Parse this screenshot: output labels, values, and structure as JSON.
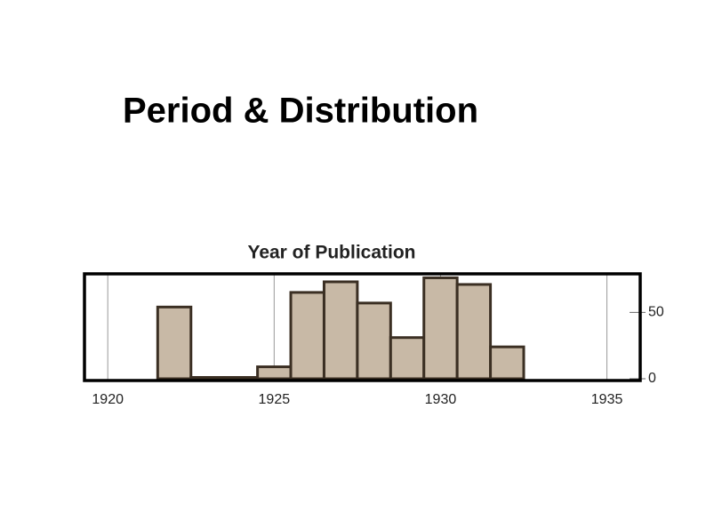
{
  "slide": {
    "title": "Period & Distribution"
  },
  "chart_data": {
    "type": "histogram",
    "title": "Year of Publication",
    "bins": [
      1921.5,
      1922.5,
      1923.5,
      1924.5,
      1925.5,
      1926.5,
      1927.5,
      1928.5,
      1929.5,
      1930.5,
      1931.5,
      1932.5
    ],
    "values": [
      54,
      1,
      1,
      9,
      65,
      73,
      57,
      31,
      76,
      71,
      24
    ],
    "color": "#c8b9a6",
    "xlim": [
      1919.3,
      1936
    ],
    "xticks": [
      1920,
      1925,
      1930,
      1935
    ],
    "ylim": [
      0,
      79
    ],
    "yticks": [
      0,
      50
    ],
    "grid": true
  }
}
